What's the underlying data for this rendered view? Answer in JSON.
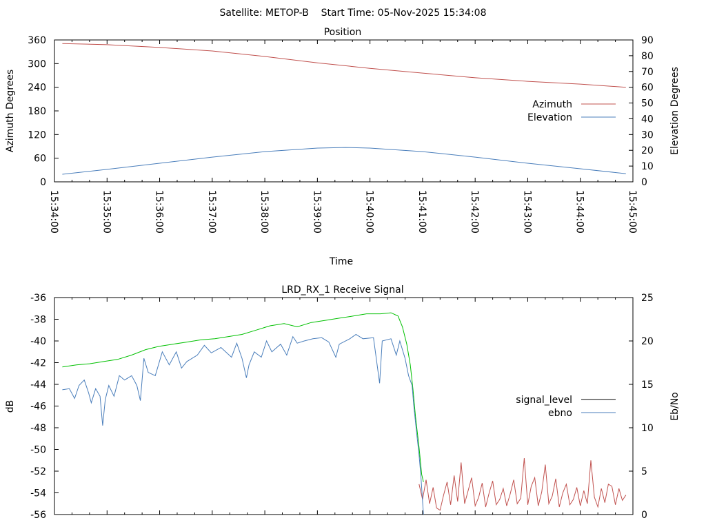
{
  "header": {
    "satellite": "Satellite: METOP-B",
    "start_time": "Start Time: 05-Nov-2025 15:34:08"
  },
  "colors": {
    "azimuth": "#c0504d",
    "elevation": "#4a7ebb",
    "signal_level": "#00c000",
    "ebno": "#4a7ebb",
    "noise": "#c0504d",
    "legend_signal": "#000000"
  },
  "chart_data": [
    {
      "type": "line",
      "title": "Position",
      "xlabel": "Time",
      "ylabel": "Azimuth Degrees",
      "y2label": "Elevation Degrees",
      "xlim_seconds": [
        0,
        660
      ],
      "xticks": [
        "15:34:00",
        "15:35:00",
        "15:36:00",
        "15:37:00",
        "15:38:00",
        "15:39:00",
        "15:40:00",
        "15:41:00",
        "15:42:00",
        "15:43:00",
        "15:44:00",
        "15:45:00"
      ],
      "ylim": [
        0,
        360
      ],
      "yticks": [
        0,
        60,
        120,
        180,
        240,
        300,
        360
      ],
      "y2lim": [
        0,
        90
      ],
      "y2ticks": [
        0,
        10,
        20,
        30,
        40,
        50,
        60,
        70,
        80,
        90
      ],
      "legend_position": "right",
      "series": [
        {
          "name": "Azimuth",
          "axis": "y",
          "t": [
            9,
            60,
            120,
            180,
            240,
            300,
            360,
            420,
            480,
            540,
            600,
            652
          ],
          "values": [
            351,
            348,
            341,
            332,
            318,
            302,
            288,
            276,
            264,
            255,
            248,
            240
          ]
        },
        {
          "name": "Elevation",
          "axis": "y2",
          "t": [
            9,
            60,
            120,
            180,
            240,
            300,
            332,
            360,
            420,
            480,
            540,
            600,
            652
          ],
          "values": [
            4.8,
            7.9,
            11.8,
            15.7,
            19.2,
            21.4,
            21.8,
            21.4,
            19.2,
            15.7,
            11.8,
            8.3,
            5.2
          ]
        }
      ]
    },
    {
      "type": "line",
      "title": "LRD_RX_1 Receive Signal",
      "ylabel": "dB",
      "y2label": "Eb/No",
      "xlim_seconds": [
        0,
        660
      ],
      "ylim": [
        -56,
        -36
      ],
      "yticks": [
        -56,
        -54,
        -52,
        -50,
        -48,
        -46,
        -44,
        -42,
        -40,
        -38,
        -36
      ],
      "y2lim": [
        0,
        25
      ],
      "y2ticks": [
        0,
        5,
        10,
        15,
        20,
        25
      ],
      "legend_position": "right",
      "legend": [
        "signal_level",
        "ebno"
      ],
      "series": [
        {
          "name": "signal_level",
          "t": [
            9,
            25,
            40,
            56,
            72,
            88,
            104,
            119,
            135,
            151,
            167,
            183,
            198,
            214,
            230,
            246,
            262,
            277,
            293,
            309,
            325,
            341,
            356,
            372,
            384,
            392,
            397,
            402,
            406,
            409,
            412,
            416,
            419,
            421
          ],
          "values": [
            -42.4,
            -42.2,
            -42.1,
            -41.9,
            -41.7,
            -41.3,
            -40.8,
            -40.5,
            -40.3,
            -40.1,
            -39.9,
            -39.8,
            -39.6,
            -39.4,
            -39.0,
            -38.6,
            -38.4,
            -38.7,
            -38.3,
            -38.1,
            -37.9,
            -37.7,
            -37.5,
            -37.5,
            -37.4,
            -37.7,
            -38.7,
            -40.3,
            -42.2,
            -44.4,
            -47.0,
            -49.8,
            -52.3,
            -53.0
          ]
        },
        {
          "name": "ebno",
          "t": [
            9,
            17,
            23,
            28,
            34,
            39,
            42,
            47,
            52,
            55,
            58,
            62,
            68,
            74,
            80,
            88,
            94,
            98,
            102,
            107,
            115,
            123,
            131,
            139,
            145,
            151,
            163,
            171,
            179,
            190,
            202,
            208,
            214,
            219,
            222,
            228,
            236,
            242,
            248,
            258,
            265,
            272,
            277,
            285,
            295,
            305,
            313,
            321,
            325,
            337,
            344,
            352,
            364,
            371,
            374,
            384,
            390,
            394,
            400,
            404,
            408,
            410,
            413,
            416,
            418,
            421
          ],
          "values": [
            -44.5,
            -44.4,
            -45.3,
            -44.1,
            -43.6,
            -44.8,
            -45.7,
            -44.4,
            -45.1,
            -47.8,
            -45.4,
            -44.1,
            -45.1,
            -43.2,
            -43.6,
            -43.2,
            -44.1,
            -45.5,
            -41.6,
            -42.9,
            -43.2,
            -41.0,
            -42.2,
            -41.0,
            -42.5,
            -41.9,
            -41.3,
            -40.4,
            -41.1,
            -40.6,
            -41.5,
            -40.2,
            -41.6,
            -43.4,
            -42.2,
            -41.0,
            -41.5,
            -40.0,
            -41.0,
            -40.3,
            -41.3,
            -39.6,
            -40.2,
            -40.0,
            -39.8,
            -39.7,
            -40.1,
            -41.5,
            -40.3,
            -39.8,
            -39.4,
            -39.8,
            -39.7,
            -43.9,
            -40.0,
            -39.8,
            -41.3,
            -40.0,
            -41.6,
            -43.2,
            -44.1,
            -46.0,
            -48.3,
            -50.5,
            -52.4,
            -56.0
          ]
        },
        {
          "name": "noise",
          "t0": 416,
          "dt": 4,
          "values": [
            -53.2,
            -54.6,
            -52.8,
            -55.0,
            -53.5,
            -55.4,
            -55.6,
            -54.2,
            -53.0,
            -55.1,
            -52.4,
            -54.8,
            -51.2,
            -55.0,
            -53.8,
            -52.6,
            -55.2,
            -54.4,
            -53.1,
            -55.3,
            -54.0,
            -52.9,
            -55.1,
            -54.6,
            -53.6,
            -55.2,
            -54.1,
            -52.8,
            -55.0,
            -54.5,
            -50.8,
            -55.1,
            -53.4,
            -52.6,
            -55.2,
            -53.9,
            -51.4,
            -55.0,
            -54.3,
            -52.7,
            -55.3,
            -54.0,
            -53.2,
            -55.1,
            -54.6,
            -53.5,
            -55.2,
            -53.8,
            -55.0,
            -51.0,
            -54.4,
            -55.3,
            -53.6,
            -54.9,
            -53.2,
            -53.4,
            -55.1,
            -53.6,
            -54.7,
            -54.2
          ]
        }
      ]
    }
  ]
}
